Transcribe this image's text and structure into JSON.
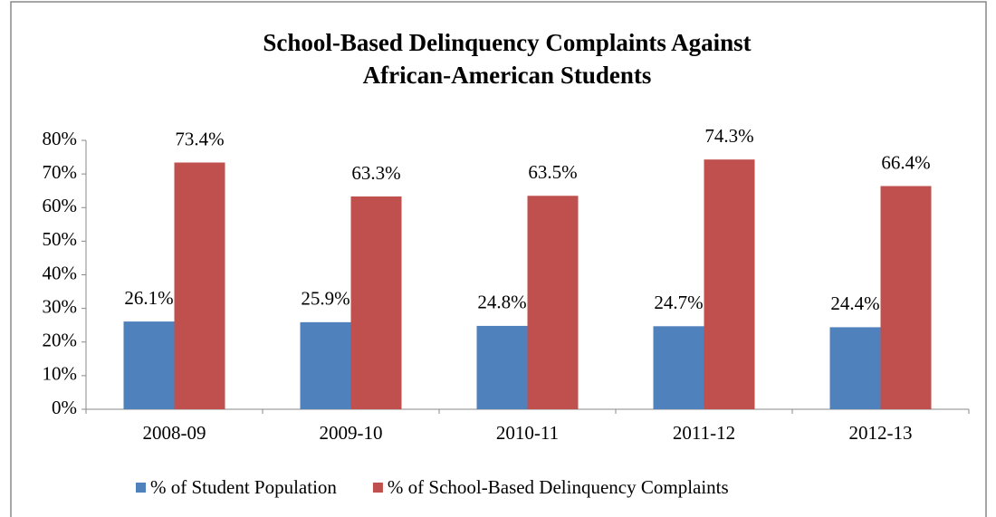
{
  "chart_data": {
    "type": "bar",
    "title": [
      "School-Based Delinquency Complaints Against",
      "African-American Students"
    ],
    "categories": [
      "2008-09",
      "2009-10",
      "2010-11",
      "2011-12",
      "2012-13"
    ],
    "series": [
      {
        "name": "% of Student Population",
        "color": "#4f81bd",
        "values": [
          26.1,
          25.9,
          24.8,
          24.7,
          24.4
        ],
        "value_labels": [
          "26.1%",
          "25.9%",
          "24.8%",
          "24.7%",
          "24.4%"
        ]
      },
      {
        "name": "% of School-Based Delinquency Complaints",
        "color": "#c0504d",
        "values": [
          73.4,
          63.3,
          63.5,
          74.3,
          66.4
        ],
        "value_labels": [
          "73.4%",
          "63.3%",
          "63.5%",
          "74.3%",
          "66.4%"
        ]
      }
    ],
    "ylim": [
      0,
      80
    ],
    "yticks": [
      {
        "value": 0,
        "label": "0%"
      },
      {
        "value": 10,
        "label": "10%"
      },
      {
        "value": 20,
        "label": "20%"
      },
      {
        "value": 30,
        "label": "30%"
      },
      {
        "value": 40,
        "label": "40%"
      },
      {
        "value": 50,
        "label": "50%"
      },
      {
        "value": 60,
        "label": "60%"
      },
      {
        "value": 70,
        "label": "70%"
      },
      {
        "value": 80,
        "label": "80%"
      }
    ],
    "legend": "bottom"
  }
}
